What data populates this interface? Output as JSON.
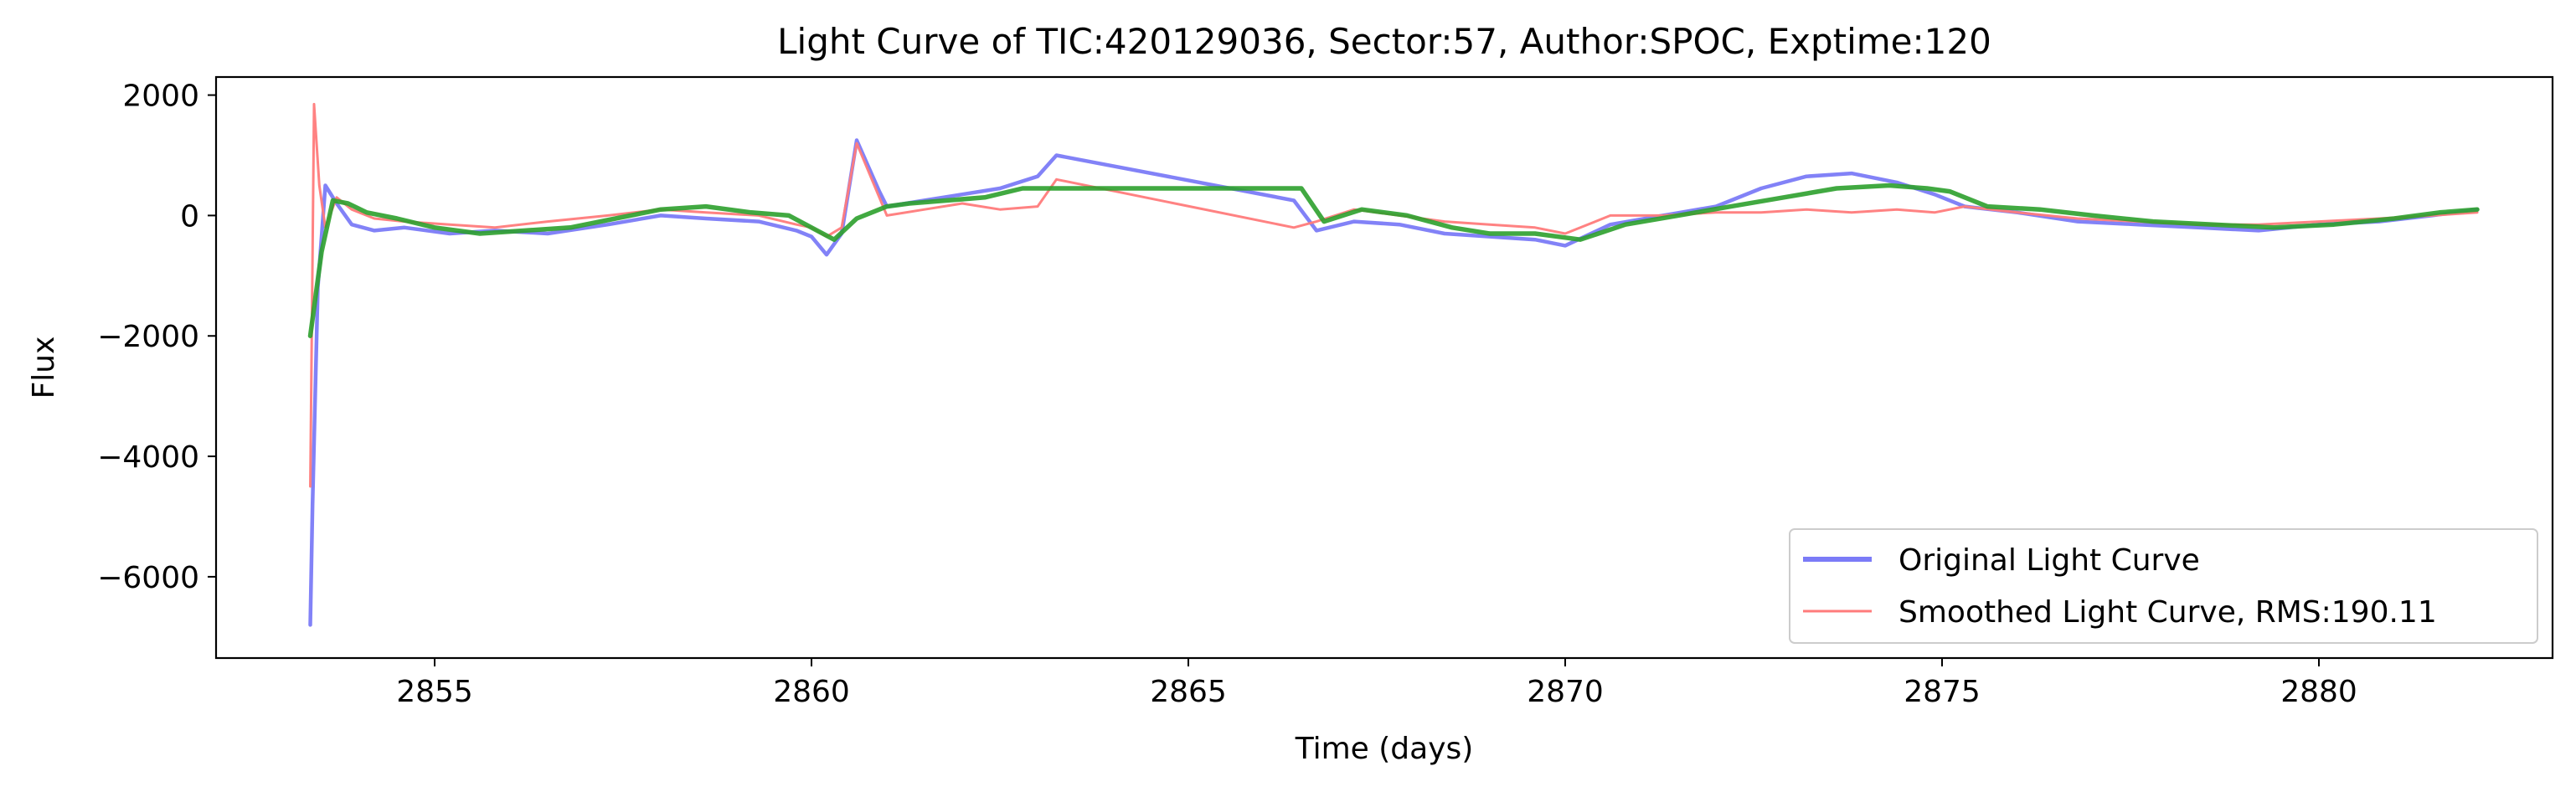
{
  "chart_data": {
    "type": "line",
    "title": "Light Curve of TIC:420129036, Sector:57, Author:SPOC, Exptime:120",
    "xlabel": "Time (days)",
    "ylabel": "Flux",
    "xlim": [
      2852.1,
      2883.1
    ],
    "ylim": [
      -7350,
      2300
    ],
    "x_ticks": [
      2855,
      2860,
      2865,
      2870,
      2875,
      2880
    ],
    "x_tick_labels": [
      "2855",
      "2860",
      "2865",
      "2870",
      "2875",
      "2880"
    ],
    "y_ticks": [
      -6000,
      -4000,
      -2000,
      0,
      2000
    ],
    "y_tick_labels": [
      "−6000",
      "−4000",
      "−2000",
      "0",
      "2000"
    ],
    "grid": false,
    "legend_position": "lower-right",
    "series": [
      {
        "name": "Original Light Curve",
        "color": "#7b7bf7",
        "x": [
          2853.35,
          2853.38,
          2853.45,
          2853.55,
          2853.7,
          2853.9,
          2854.2,
          2854.6,
          2855.2,
          2855.8,
          2856.5,
          2857.3,
          2858.0,
          2858.6,
          2859.3,
          2859.8,
          2860.0,
          2860.2,
          2860.4,
          2860.6,
          2860.9,
          2861.0,
          2861.5,
          2862.0,
          2862.5,
          2863.0,
          2863.25,
          2866.4,
          2866.7,
          2867.2,
          2867.8,
          2868.4,
          2869.0,
          2869.6,
          2870.0,
          2870.6,
          2871.3,
          2872.0,
          2872.6,
          2873.2,
          2873.8,
          2874.4,
          2874.9,
          2875.3,
          2876.0,
          2876.8,
          2877.6,
          2878.4,
          2879.2,
          2880.0,
          2880.8,
          2881.5,
          2882.1
        ],
        "y": [
          -6800,
          -4800,
          -1200,
          500,
          200,
          -150,
          -250,
          -200,
          -300,
          -250,
          -300,
          -150,
          0,
          -50,
          -100,
          -250,
          -350,
          -650,
          -300,
          1250,
          400,
          150,
          250,
          350,
          450,
          650,
          1000,
          250,
          -250,
          -100,
          -150,
          -300,
          -350,
          -400,
          -500,
          -150,
          0,
          150,
          450,
          650,
          700,
          550,
          350,
          150,
          50,
          -100,
          -150,
          -200,
          -250,
          -150,
          -100,
          0,
          100
        ]
      },
      {
        "name": "Smoothed Light Curve, RMS:190.11",
        "color": "#ff7b7b",
        "x": [
          2853.35,
          2853.4,
          2853.47,
          2853.55,
          2853.7,
          2853.9,
          2854.2,
          2854.6,
          2855.2,
          2855.8,
          2856.5,
          2857.3,
          2858.0,
          2858.6,
          2859.3,
          2859.8,
          2860.0,
          2860.2,
          2860.4,
          2860.6,
          2860.9,
          2861.0,
          2861.5,
          2862.0,
          2862.5,
          2863.0,
          2863.25,
          2866.4,
          2866.7,
          2867.2,
          2867.8,
          2868.4,
          2869.0,
          2869.6,
          2870.0,
          2870.6,
          2871.3,
          2872.0,
          2872.6,
          2873.2,
          2873.8,
          2874.4,
          2874.9,
          2875.3,
          2876.0,
          2876.8,
          2877.6,
          2878.4,
          2879.2,
          2880.0,
          2880.8,
          2881.5,
          2882.1
        ],
        "y": [
          -4500,
          1850,
          500,
          -200,
          300,
          100,
          -50,
          -100,
          -150,
          -200,
          -100,
          0,
          100,
          50,
          0,
          -150,
          -200,
          -350,
          -200,
          1200,
          300,
          0,
          100,
          200,
          100,
          150,
          600,
          -200,
          -100,
          100,
          0,
          -100,
          -150,
          -200,
          -300,
          0,
          0,
          50,
          50,
          100,
          50,
          100,
          50,
          150,
          50,
          -50,
          -100,
          -150,
          -150,
          -100,
          -50,
          0,
          50
        ]
      },
      {
        "name": "",
        "color": "#2ca02c",
        "x": [
          2853.35,
          2853.5,
          2853.65,
          2853.85,
          2854.1,
          2854.5,
          2855.0,
          2855.6,
          2856.2,
          2856.8,
          2857.4,
          2858.0,
          2858.6,
          2859.2,
          2859.7,
          2860.0,
          2860.3,
          2860.6,
          2861.0,
          2861.3,
          2861.8,
          2862.3,
          2862.8,
          2863.25,
          2866.5,
          2866.8,
          2867.3,
          2867.9,
          2868.5,
          2869.0,
          2869.6,
          2870.2,
          2870.8,
          2871.5,
          2872.2,
          2872.9,
          2873.6,
          2874.3,
          2874.8,
          2875.1,
          2875.6,
          2876.3,
          2877.0,
          2877.8,
          2878.6,
          2879.4,
          2880.2,
          2881.0,
          2881.6,
          2882.1
        ],
        "y": [
          -2000,
          -600,
          250,
          200,
          50,
          -50,
          -200,
          -300,
          -250,
          -200,
          -50,
          100,
          150,
          50,
          0,
          -200,
          -400,
          -50,
          150,
          200,
          250,
          300,
          450,
          450,
          450,
          -100,
          100,
          0,
          -200,
          -300,
          -300,
          -400,
          -150,
          0,
          150,
          300,
          450,
          500,
          450,
          400,
          150,
          100,
          0,
          -100,
          -150,
          -200,
          -150,
          -50,
          50,
          100
        ]
      }
    ]
  }
}
